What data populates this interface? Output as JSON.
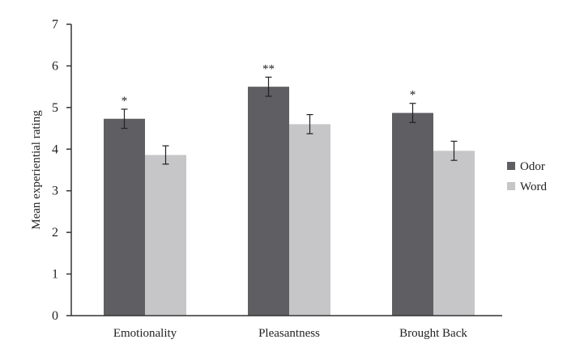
{
  "chart_data": {
    "type": "bar",
    "title": "",
    "xlabel": "",
    "ylabel": "Mean experiential rating",
    "ylim": [
      0,
      7
    ],
    "yticks": [
      0,
      1,
      2,
      3,
      4,
      5,
      6,
      7
    ],
    "categories": [
      "Emotionality",
      "Pleasantness",
      "Brought Back"
    ],
    "series": [
      {
        "name": "Odor",
        "color": "#5f5f63",
        "values": [
          4.73,
          5.5,
          4.87
        ],
        "errors": [
          0.23,
          0.23,
          0.23
        ],
        "significance": [
          "*",
          "**",
          "*"
        ]
      },
      {
        "name": "Word",
        "color": "#c6c6c8",
        "values": [
          3.86,
          4.6,
          3.96
        ],
        "errors": [
          0.22,
          0.23,
          0.23
        ],
        "significance": [
          "",
          "",
          ""
        ]
      }
    ],
    "legend": "right"
  }
}
